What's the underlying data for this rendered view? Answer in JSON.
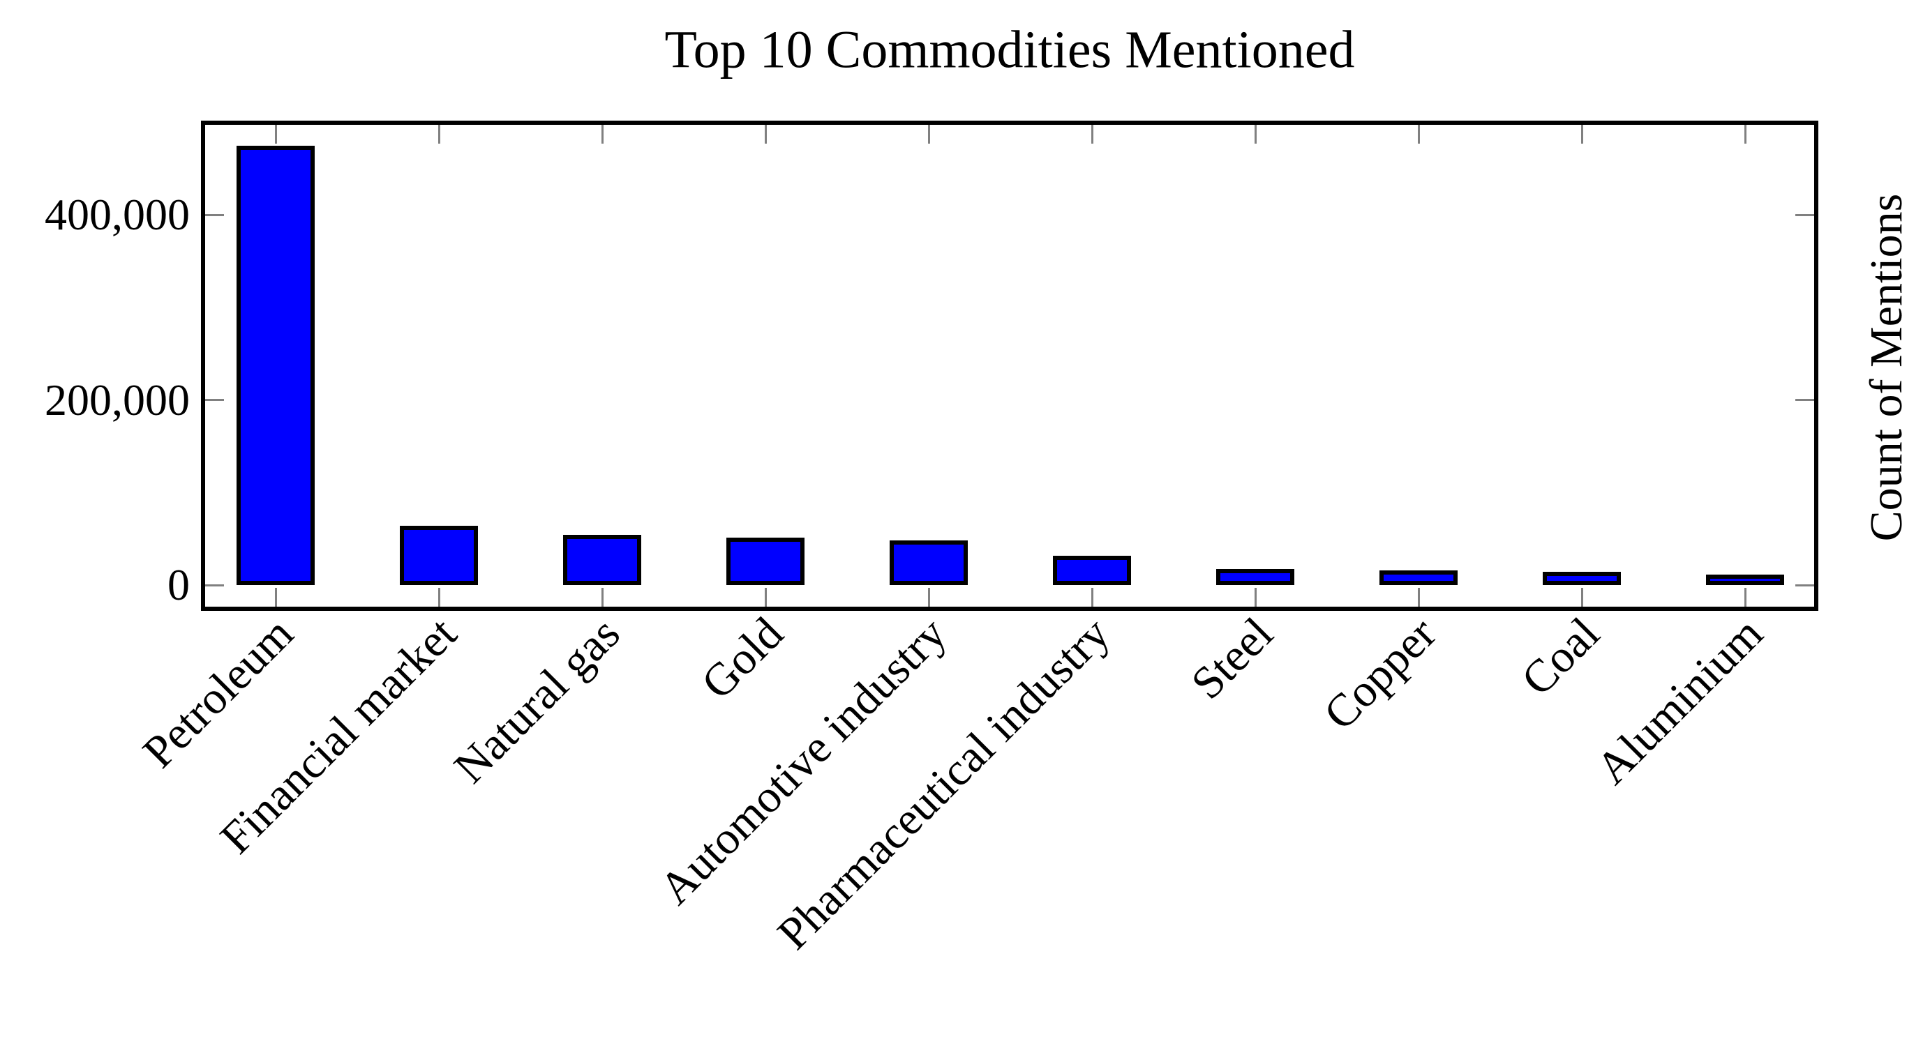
{
  "chart_data": {
    "type": "bar",
    "title": "Top 10 Commodities Mentioned",
    "categories": [
      "Petroleum",
      "Financial market",
      "Natural gas",
      "Gold",
      "Automotive industry",
      "Pharmaceutical industry",
      "Steel",
      "Copper",
      "Coal",
      "Aluminium"
    ],
    "values": [
      475000,
      64000,
      54000,
      51000,
      48000,
      32000,
      17500,
      15500,
      14000,
      11500
    ],
    "xlabel": "",
    "ylabel": "Count of Mentions",
    "ylabel_position": "right",
    "yticks": [
      0,
      200000,
      400000
    ],
    "ytick_labels": [
      "0",
      "200,000",
      "400,000"
    ],
    "ylim": [
      -21000,
      500000
    ],
    "grid": false,
    "legend": "none",
    "bar_color": "#0000ff",
    "bar_border_color": "#000000",
    "axis_color": "#000000",
    "tick_color": "#808080",
    "background_color": "#ffffff"
  }
}
